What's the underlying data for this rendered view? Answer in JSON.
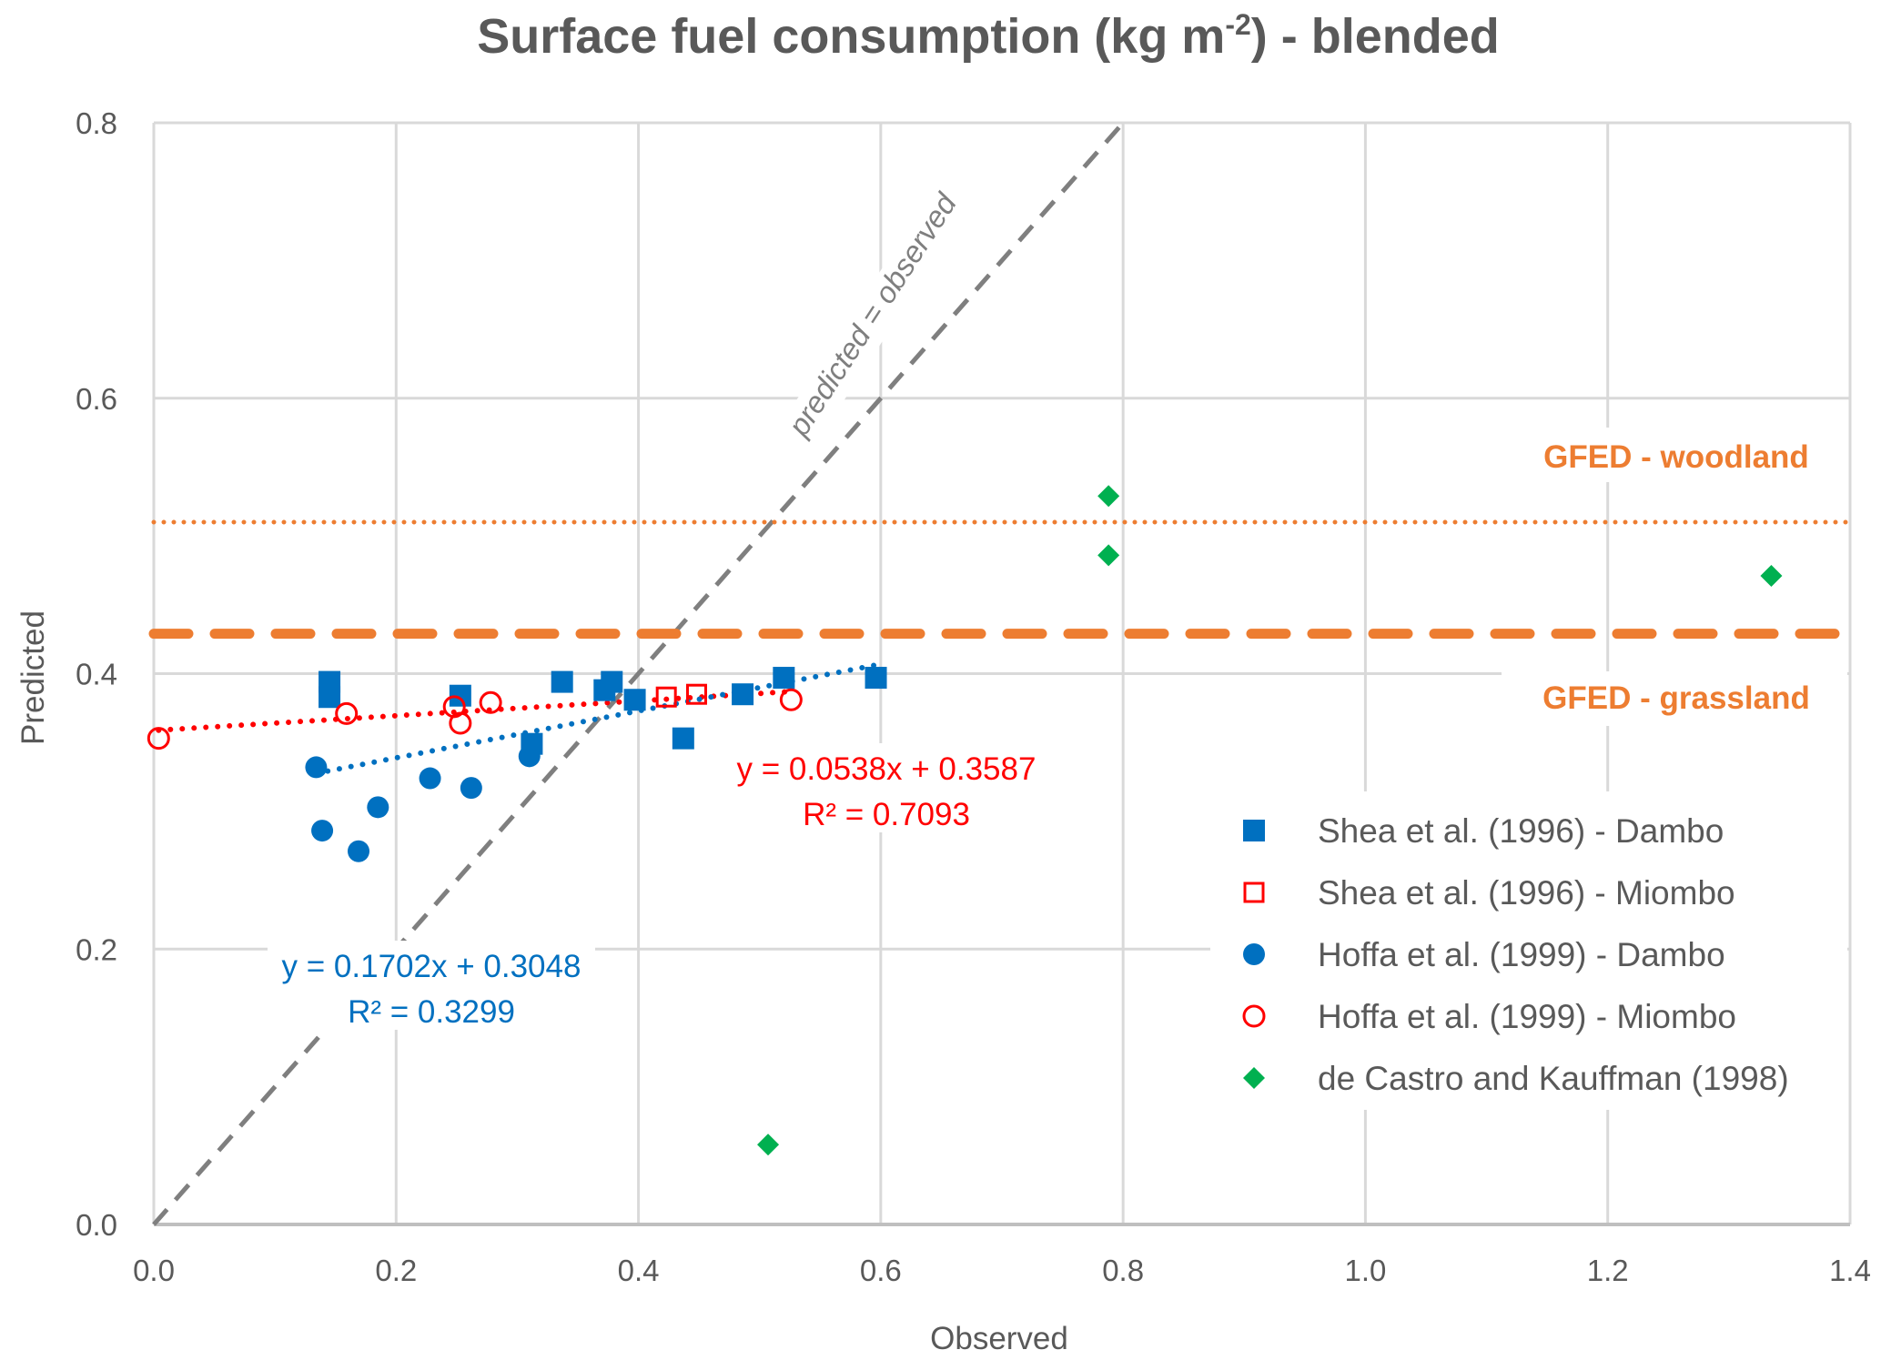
{
  "chart_data": {
    "type": "scatter",
    "title": "Surface fuel consumption (kg m",
    "title_superscript": "-2",
    "title_suffix": ") - blended",
    "xlabel": "Observed",
    "ylabel": "Predicted",
    "xlim": [
      0,
      1.4
    ],
    "ylim": [
      0,
      0.8
    ],
    "xticks": [
      "0.0",
      "0.2",
      "0.4",
      "0.6",
      "0.8",
      "1.0",
      "1.2",
      "1.4"
    ],
    "xtick_values": [
      0,
      0.2,
      0.4,
      0.6,
      0.8,
      1.0,
      1.2,
      1.4
    ],
    "yticks": [
      "0.0",
      "0.2",
      "0.4",
      "0.6",
      "0.8"
    ],
    "ytick_values": [
      0,
      0.2,
      0.4,
      0.6,
      0.8
    ],
    "grid": true,
    "legend_position": "bottom-right",
    "series": [
      {
        "name": "Shea et al. (1996) - Dambo",
        "marker": "square-filled",
        "color": "#0070C0",
        "points": [
          [
            0.145,
            0.394
          ],
          [
            0.145,
            0.383
          ],
          [
            0.253,
            0.384
          ],
          [
            0.337,
            0.394
          ],
          [
            0.372,
            0.388
          ],
          [
            0.378,
            0.394
          ],
          [
            0.397,
            0.381
          ],
          [
            0.312,
            0.349
          ],
          [
            0.437,
            0.353
          ],
          [
            0.486,
            0.385
          ],
          [
            0.52,
            0.397
          ],
          [
            0.596,
            0.397
          ]
        ]
      },
      {
        "name": "Shea et al. (1996) - Miombo",
        "marker": "square-open",
        "color": "#FF0000",
        "points": [
          [
            0.423,
            0.383
          ],
          [
            0.448,
            0.385
          ]
        ]
      },
      {
        "name": "Hoffa et al. (1999) - Dambo",
        "marker": "circle-filled",
        "color": "#0070C0",
        "points": [
          [
            0.134,
            0.332
          ],
          [
            0.139,
            0.286
          ],
          [
            0.169,
            0.271
          ],
          [
            0.185,
            0.303
          ],
          [
            0.228,
            0.324
          ],
          [
            0.262,
            0.317
          ],
          [
            0.31,
            0.34
          ]
        ]
      },
      {
        "name": "Hoffa et al. (1999) - Miombo",
        "marker": "circle-open",
        "color": "#FF0000",
        "points": [
          [
            0.004,
            0.353
          ],
          [
            0.159,
            0.371
          ],
          [
            0.248,
            0.376
          ],
          [
            0.253,
            0.364
          ],
          [
            0.278,
            0.379
          ],
          [
            0.526,
            0.381
          ]
        ]
      },
      {
        "name": "de Castro and Kauffman (1998)",
        "marker": "diamond-filled",
        "color": "#00B050",
        "points": [
          [
            0.507,
            0.058
          ],
          [
            0.788,
            0.529
          ],
          [
            0.788,
            0.486
          ],
          [
            1.335,
            0.471
          ]
        ]
      }
    ],
    "trendlines": [
      {
        "name": "miombo-trend",
        "color": "#FF0000",
        "slope": 0.0538,
        "intercept": 0.3587,
        "x_range": [
          0.004,
          0.526
        ],
        "equation": "y = 0.0538x + 0.3587",
        "r2": "R² = 0.7093"
      },
      {
        "name": "dambo-trend",
        "color": "#0070C0",
        "slope": 0.1702,
        "intercept": 0.3048,
        "x_range": [
          0.134,
          0.596
        ],
        "equation": "y = 0.1702x + 0.3048",
        "r2": "R² = 0.3299"
      }
    ],
    "reference_lines": [
      {
        "name": "one-to-one",
        "label": "predicted = observed",
        "color": "#7f7f7f",
        "style": "dashed",
        "from": [
          0,
          0
        ],
        "to": [
          0.8,
          0.8
        ]
      },
      {
        "name": "gfed-woodland",
        "label": "GFED - woodland",
        "color": "#ED7D31",
        "style": "dotted",
        "y": 0.51
      },
      {
        "name": "gfed-grassland",
        "label": "GFED - grassland",
        "color": "#ED7D31",
        "style": "dashed",
        "y": 0.429
      }
    ]
  }
}
